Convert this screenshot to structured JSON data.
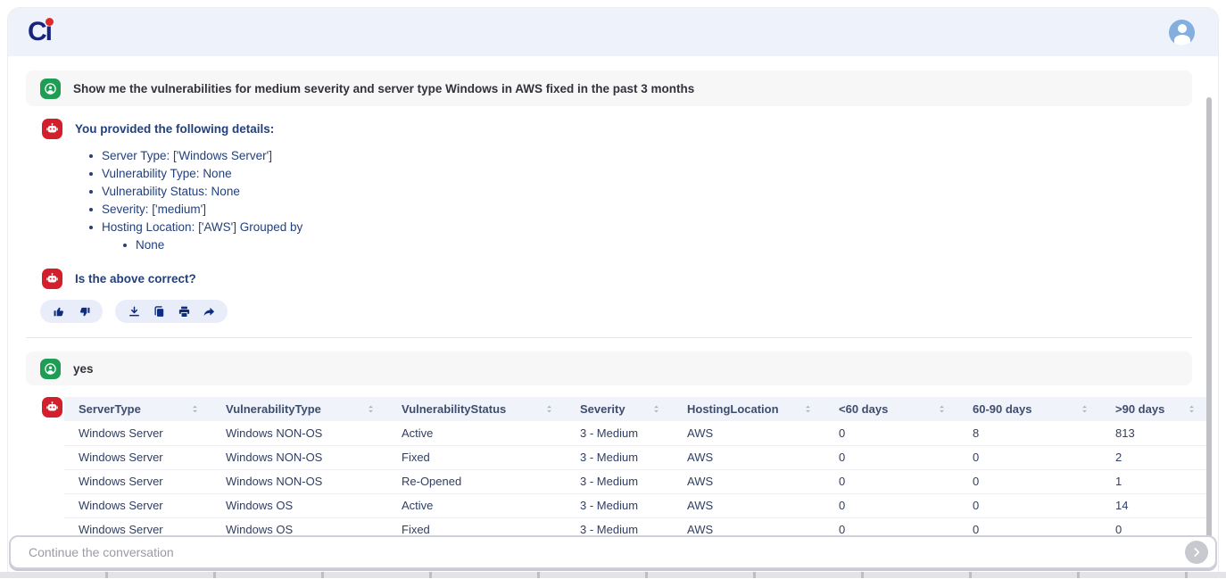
{
  "header": {
    "logo_text": "Cı",
    "logo_color": "#16247e",
    "logo_dot_color": "#e02a2a"
  },
  "conversation": {
    "user_message_1": "Show me the vulnerabilities for medium severity and server type Windows in AWS fixed in the past 3 months",
    "bot_intro": "You provided the following details:",
    "details": [
      "Server Type: ['Windows Server']",
      "Vulnerability Type: None",
      "Vulnerability Status: None",
      "Severity: ['medium']",
      "Hosting Location: ['AWS'] Grouped by"
    ],
    "nested_detail": "None",
    "bot_question": "Is the above correct?",
    "user_message_2": "yes"
  },
  "table": {
    "columns": [
      "ServerType",
      "VulnerabilityType",
      "VulnerabilityStatus",
      "Severity",
      "HostingLocation",
      "<60 days",
      "60-90 days",
      ">90 days"
    ],
    "rows": [
      [
        "Windows Server",
        "Windows NON-OS",
        "Active",
        "3 - Medium",
        "AWS",
        "0",
        "8",
        "813"
      ],
      [
        "Windows Server",
        "Windows NON-OS",
        "Fixed",
        "3 - Medium",
        "AWS",
        "0",
        "0",
        "2"
      ],
      [
        "Windows Server",
        "Windows NON-OS",
        "Re-Opened",
        "3 - Medium",
        "AWS",
        "0",
        "0",
        "1"
      ],
      [
        "Windows Server",
        "Windows OS",
        "Active",
        "3 - Medium",
        "AWS",
        "0",
        "0",
        "14"
      ],
      [
        "Windows Server",
        "Windows OS",
        "Fixed",
        "3 - Medium",
        "AWS",
        "0",
        "0",
        "0"
      ]
    ]
  },
  "composer": {
    "placeholder": "Continue the conversation"
  },
  "icons": {
    "user_avatar": "person-in-circle",
    "bot_avatar": "robot-face",
    "actions": [
      "thumbs-up",
      "thumbs-down",
      "download",
      "copy",
      "print",
      "share"
    ],
    "send": "chevron-right-circle",
    "sort": "up-down-arrows"
  },
  "colors": {
    "topbar_bg": "#eef2fb",
    "user_bubble_bg": "#f7f7f8",
    "bot_text": "#23407c",
    "user_icon_bg": "#1f9d55",
    "bot_icon_bg": "#d21f2b",
    "pill_bg": "#e9edfa",
    "action_icon": "#0f2d7e",
    "table_header_bg": "#f0f3fa"
  }
}
